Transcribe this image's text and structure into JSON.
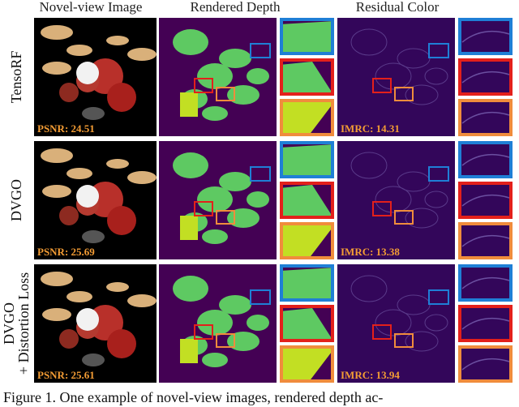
{
  "headers": [
    "Novel-view Image",
    "Rendered Depth",
    "Residual Color"
  ],
  "rows": [
    {
      "label_lines": [
        "TensoRF"
      ],
      "psnr": "PSNR: 24.51",
      "imrc": "IMRC: 14.31"
    },
    {
      "label_lines": [
        "DVGO"
      ],
      "psnr": "PSNR: 25.69",
      "imrc": "IMRC: 13.38"
    },
    {
      "label_lines": [
        "DVGO",
        "+ Distortion Loss"
      ],
      "psnr": "PSNR: 25.61",
      "imrc": "IMRC: 13.94"
    }
  ],
  "caption": "Figure 1. One example of novel-view images, rendered depth ac-"
}
